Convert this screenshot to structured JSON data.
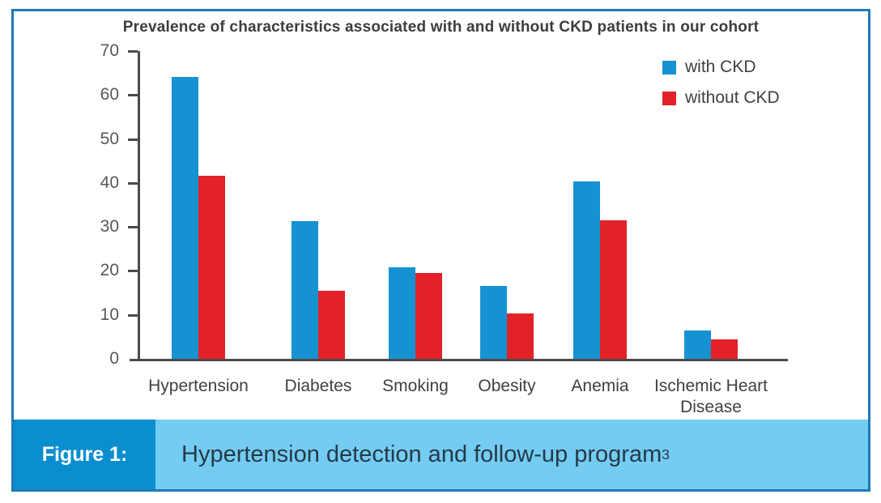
{
  "figure": {
    "title": "Prevalence of characteristics associated with and without CKD patients in our cohort",
    "caption": {
      "label": "Figure 1:",
      "text": "Hypertension detection and follow-up program",
      "superscript": "3"
    }
  },
  "chart_data": {
    "type": "bar",
    "title": "Prevalence of characteristics associated with and without CKD patients in our cohort",
    "categories": [
      "Hypertension",
      "Diabetes",
      "Smoking",
      "Obesity",
      "Anemia",
      "Ischemic Heart Disease"
    ],
    "series": [
      {
        "name": "with CKD",
        "color": "#1692d2",
        "values": [
          64.1,
          31.3,
          20.8,
          16.5,
          40.3,
          6.4
        ]
      },
      {
        "name": "without CKD",
        "color": "#e32129",
        "values": [
          41.6,
          15.5,
          19.5,
          10.3,
          31.5,
          4.5
        ]
      }
    ],
    "xlabel": "",
    "ylabel": "",
    "ylim": [
      0,
      70
    ],
    "yticks": [
      0,
      10,
      20,
      30,
      40,
      50,
      60,
      70
    ],
    "legend_position": "top-right",
    "grid": false
  },
  "colors": {
    "bar_with_ckd": "#1692d2",
    "bar_without_ckd": "#e32129",
    "frame_border": "#1e7ab8",
    "axis": "#4b4b4d",
    "figure_badge_bg": "#0a8ecf",
    "caption_bg": "#74ccf3",
    "caption_text": "#253a47"
  }
}
